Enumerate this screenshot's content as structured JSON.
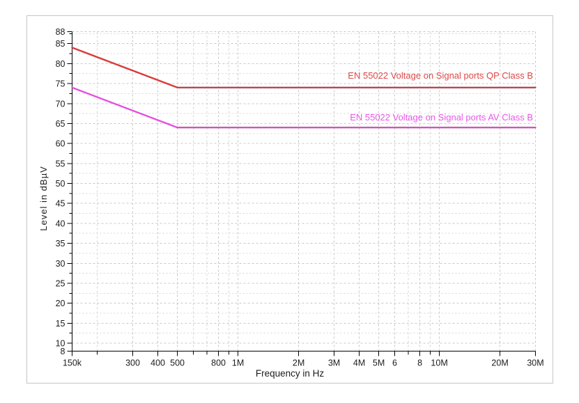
{
  "frame": {
    "border_color": "#c2c6ca",
    "background": "#ffffff"
  },
  "chart_data": {
    "type": "line",
    "title": "",
    "xlabel": "Frequency in Hz",
    "ylabel": "Level in dBµV",
    "x_scale": "log",
    "xlim": [
      150000,
      30000000
    ],
    "ylim": [
      8,
      88
    ],
    "grid": true,
    "grid_color": "#c8c8c8",
    "minor_grid_color": "#d6d6d6",
    "axis_color": "#000000",
    "tick_label_color": "#1c1c1c",
    "y_major_ticks": [
      8,
      10,
      15,
      20,
      25,
      30,
      35,
      40,
      45,
      50,
      55,
      60,
      65,
      70,
      75,
      80,
      85,
      88
    ],
    "y_minor_tick_step": 2.5,
    "x_ticks": [
      {
        "f": 150000,
        "label": "150k"
      },
      {
        "f": 200000,
        "label": ""
      },
      {
        "f": 300000,
        "label": "300"
      },
      {
        "f": 400000,
        "label": "400"
      },
      {
        "f": 500000,
        "label": "500"
      },
      {
        "f": 600000,
        "label": ""
      },
      {
        "f": 700000,
        "label": ""
      },
      {
        "f": 800000,
        "label": "800"
      },
      {
        "f": 900000,
        "label": ""
      },
      {
        "f": 1000000,
        "label": "1M"
      },
      {
        "f": 2000000,
        "label": "2M"
      },
      {
        "f": 3000000,
        "label": "3M"
      },
      {
        "f": 4000000,
        "label": "4M"
      },
      {
        "f": 5000000,
        "label": "5M"
      },
      {
        "f": 6000000,
        "label": "6"
      },
      {
        "f": 7000000,
        "label": ""
      },
      {
        "f": 8000000,
        "label": "8"
      },
      {
        "f": 9000000,
        "label": ""
      },
      {
        "f": 10000000,
        "label": "10M"
      },
      {
        "f": 20000000,
        "label": "20M"
      },
      {
        "f": 30000000,
        "label": "30M"
      }
    ],
    "series": [
      {
        "name": "EN 55022 Voltage on Signal ports QP Class B",
        "points": [
          [
            150000,
            84
          ],
          [
            500000,
            74
          ],
          [
            30000000,
            74
          ]
        ],
        "color_slope": "#d93b3b",
        "color_flat": "#b04a56",
        "label_color": "#dd4a4a"
      },
      {
        "name": "EN 55022 Voltage on Signal ports AV Class B",
        "points": [
          [
            150000,
            74
          ],
          [
            500000,
            64
          ],
          [
            30000000,
            64
          ]
        ],
        "color_slope": "#e44fe0",
        "color_flat": "#c957b8",
        "label_color": "#ea55ea"
      }
    ],
    "legend_position": "labels-above-lines-right"
  }
}
